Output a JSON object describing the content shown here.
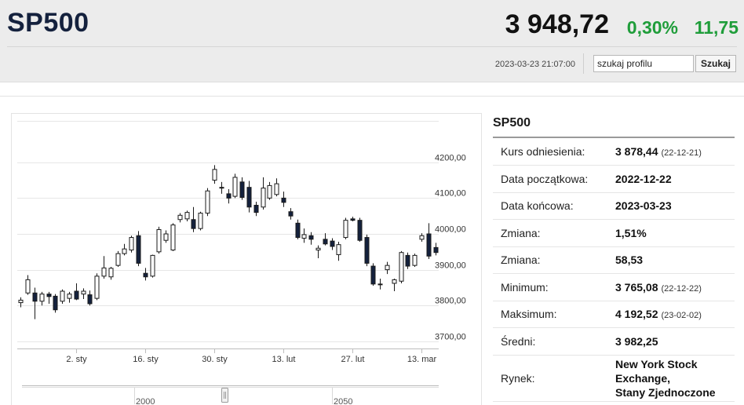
{
  "header": {
    "ticker": "SP500",
    "price": "3 948,72",
    "change_pct": "0,30%",
    "change_abs": "11,75",
    "timestamp": "2023-03-23 21:07:00",
    "search_placeholder": "szukaj profilu",
    "search_button": "Szukaj",
    "colors": {
      "up": "#1f9d3a",
      "ticker": "#14213d"
    }
  },
  "info": {
    "title": "SP500",
    "rows": [
      {
        "label": "Kurs odniesienia:",
        "value": "3 878,44",
        "sub": "(22-12-21)"
      },
      {
        "label": "Data początkowa:",
        "value": "2022-12-22",
        "sub": ""
      },
      {
        "label": "Data końcowa:",
        "value": "2023-03-23",
        "sub": ""
      },
      {
        "label": "Zmiana:",
        "value": "1,51%",
        "sub": ""
      },
      {
        "label": "Zmiana:",
        "value": "58,53",
        "sub": ""
      },
      {
        "label": "Minimum:",
        "value": "3 765,08",
        "sub": "(22-12-22)"
      },
      {
        "label": "Maksimum:",
        "value": "4 192,52",
        "sub": "(23-02-02)"
      },
      {
        "label": "Średni:",
        "value": "3 982,25",
        "sub": ""
      }
    ],
    "market": {
      "label": "Rynek:",
      "lines": [
        "New York Stock",
        "Exchange,",
        "Stany Zjednoczone"
      ]
    }
  },
  "chart_data": {
    "type": "candlestick",
    "ylim": [
      3680,
      4320
    ],
    "yticks": [
      "4200,00",
      "4100,00",
      "4000,00",
      "3900,00",
      "3800,00",
      "3700,00"
    ],
    "ytick_values": [
      4200,
      4100,
      4000,
      3900,
      3800,
      3700
    ],
    "xticks": [
      "2. sty",
      "16. sty",
      "30. sty",
      "13. lut",
      "27. lut",
      "13. mar"
    ],
    "xtick_positions": [
      8,
      18,
      28,
      38,
      48,
      58
    ],
    "navigator_labels": [
      "2000",
      "2050"
    ],
    "colors": {
      "up": "#ffffff",
      "down": "#14213d",
      "grid": "#e6e6e6",
      "axis": "#bdbdbd"
    },
    "candles": [
      {
        "o": 3808,
        "h": 3823,
        "l": 3795,
        "c": 3815
      },
      {
        "o": 3835,
        "h": 3885,
        "l": 3830,
        "c": 3872
      },
      {
        "o": 3835,
        "h": 3850,
        "l": 3762,
        "c": 3812
      },
      {
        "o": 3812,
        "h": 3838,
        "l": 3800,
        "c": 3832
      },
      {
        "o": 3832,
        "h": 3838,
        "l": 3805,
        "c": 3825
      },
      {
        "o": 3826,
        "h": 3832,
        "l": 3780,
        "c": 3788
      },
      {
        "o": 3812,
        "h": 3845,
        "l": 3805,
        "c": 3840
      },
      {
        "o": 3820,
        "h": 3838,
        "l": 3808,
        "c": 3832
      },
      {
        "o": 3840,
        "h": 3862,
        "l": 3815,
        "c": 3818
      },
      {
        "o": 3832,
        "h": 3848,
        "l": 3818,
        "c": 3840
      },
      {
        "o": 3830,
        "h": 3842,
        "l": 3800,
        "c": 3805
      },
      {
        "o": 3820,
        "h": 3890,
        "l": 3815,
        "c": 3882
      },
      {
        "o": 3882,
        "h": 3938,
        "l": 3875,
        "c": 3905
      },
      {
        "o": 3880,
        "h": 3908,
        "l": 3872,
        "c": 3904
      },
      {
        "o": 3912,
        "h": 3952,
        "l": 3908,
        "c": 3945
      },
      {
        "o": 3945,
        "h": 3972,
        "l": 3940,
        "c": 3958
      },
      {
        "o": 3955,
        "h": 3995,
        "l": 3948,
        "c": 3990
      },
      {
        "o": 3995,
        "h": 4008,
        "l": 3910,
        "c": 3918
      },
      {
        "o": 3890,
        "h": 3905,
        "l": 3870,
        "c": 3880
      },
      {
        "o": 3882,
        "h": 3942,
        "l": 3878,
        "c": 3940
      },
      {
        "o": 3950,
        "h": 4020,
        "l": 3945,
        "c": 4012
      },
      {
        "o": 3982,
        "h": 4010,
        "l": 3975,
        "c": 4000
      },
      {
        "o": 3955,
        "h": 4030,
        "l": 3952,
        "c": 4025
      },
      {
        "o": 4040,
        "h": 4058,
        "l": 4032,
        "c": 4052
      },
      {
        "o": 4042,
        "h": 4065,
        "l": 4035,
        "c": 4060
      },
      {
        "o": 4040,
        "h": 4075,
        "l": 4005,
        "c": 4015
      },
      {
        "o": 4015,
        "h": 4062,
        "l": 4010,
        "c": 4058
      },
      {
        "o": 4058,
        "h": 4128,
        "l": 4050,
        "c": 4120
      },
      {
        "o": 4150,
        "h": 4192,
        "l": 4140,
        "c": 4180
      },
      {
        "o": 4128,
        "h": 4145,
        "l": 4112,
        "c": 4130
      },
      {
        "o": 4112,
        "h": 4125,
        "l": 4085,
        "c": 4100
      },
      {
        "o": 4105,
        "h": 4168,
        "l": 4100,
        "c": 4158
      },
      {
        "o": 4145,
        "h": 4158,
        "l": 4095,
        "c": 4102
      },
      {
        "o": 4130,
        "h": 4148,
        "l": 4060,
        "c": 4075
      },
      {
        "o": 4080,
        "h": 4090,
        "l": 4050,
        "c": 4060
      },
      {
        "o": 4075,
        "h": 4158,
        "l": 4068,
        "c": 4128
      },
      {
        "o": 4100,
        "h": 4145,
        "l": 4095,
        "c": 4135
      },
      {
        "o": 4110,
        "h": 4155,
        "l": 4105,
        "c": 4140
      },
      {
        "o": 4100,
        "h": 4118,
        "l": 4075,
        "c": 4088
      },
      {
        "o": 4062,
        "h": 4072,
        "l": 4040,
        "c": 4050
      },
      {
        "o": 4030,
        "h": 4040,
        "l": 3985,
        "c": 3990
      },
      {
        "o": 3988,
        "h": 4015,
        "l": 3975,
        "c": 3998
      },
      {
        "o": 3995,
        "h": 4005,
        "l": 3970,
        "c": 3985
      },
      {
        "o": 3955,
        "h": 3968,
        "l": 3932,
        "c": 3960
      },
      {
        "o": 3985,
        "h": 4002,
        "l": 3968,
        "c": 3972
      },
      {
        "o": 3980,
        "h": 3988,
        "l": 3955,
        "c": 3965
      },
      {
        "o": 3942,
        "h": 3978,
        "l": 3925,
        "c": 3970
      },
      {
        "o": 3990,
        "h": 4045,
        "l": 3985,
        "c": 4038
      },
      {
        "o": 4042,
        "h": 4048,
        "l": 4035,
        "c": 4038
      },
      {
        "o": 4038,
        "h": 4045,
        "l": 3978,
        "c": 3982
      },
      {
        "o": 3990,
        "h": 3998,
        "l": 3910,
        "c": 3918
      },
      {
        "o": 3910,
        "h": 3918,
        "l": 3855,
        "c": 3860
      },
      {
        "o": 3860,
        "h": 3875,
        "l": 3845,
        "c": 3858
      },
      {
        "o": 3900,
        "h": 3922,
        "l": 3888,
        "c": 3912
      },
      {
        "o": 3862,
        "h": 3875,
        "l": 3840,
        "c": 3872
      },
      {
        "o": 3868,
        "h": 3952,
        "l": 3862,
        "c": 3948
      },
      {
        "o": 3940,
        "h": 3948,
        "l": 3902,
        "c": 3910
      },
      {
        "o": 3912,
        "h": 3945,
        "l": 3908,
        "c": 3940
      },
      {
        "o": 3985,
        "h": 4002,
        "l": 3978,
        "c": 3995
      },
      {
        "o": 4000,
        "h": 4030,
        "l": 3930,
        "c": 3938
      },
      {
        "o": 3962,
        "h": 3975,
        "l": 3940,
        "c": 3948
      }
    ]
  }
}
